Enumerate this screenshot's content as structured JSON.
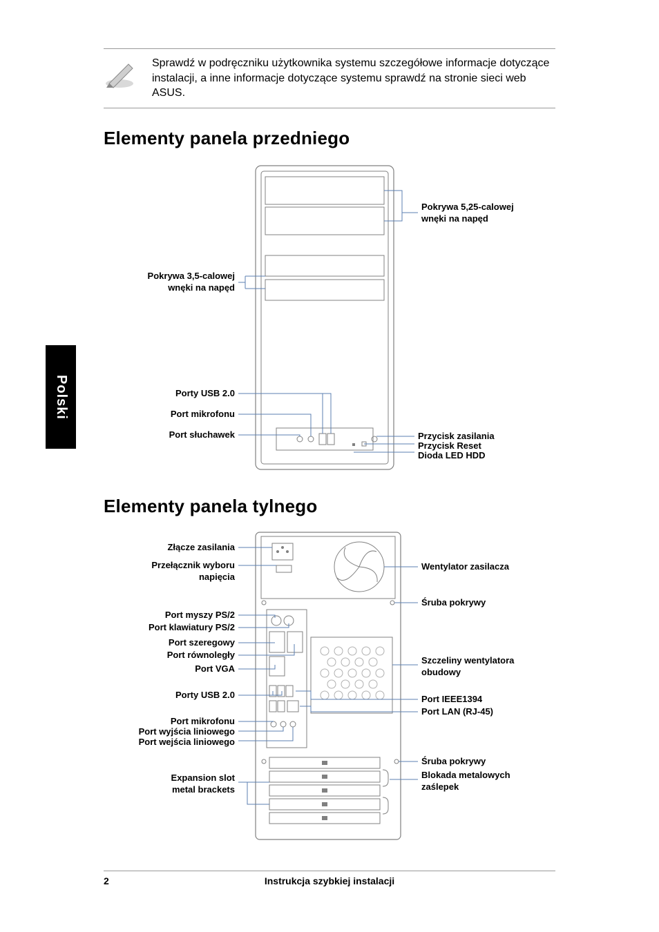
{
  "side_tab": "Polski",
  "note": {
    "text": "Sprawdź w podręczniku użytkownika systemu szczegółowe informacje dotyczące instalacji, a inne informacje dotyczące systemu sprawdź na stronie sieci web ASUS."
  },
  "front": {
    "title": "Elementy panela przedniego",
    "left": {
      "bay35": "Pokrywa 3,5-calowej\nwnęki na napęd",
      "usb20": "Porty USB 2.0",
      "mic": "Port mikrofonu",
      "head": "Port słuchawek"
    },
    "right": {
      "bay525": "Pokrywa 5,25-calowej\nwnęki na napęd",
      "power": "Przycisk zasilania",
      "reset": "Przycisk Reset",
      "hdd": "Dioda LED HDD"
    },
    "styling": {
      "line_color": "#5b7fb2",
      "chassis_stroke": "#808080",
      "chassis_fill": "#ffffff",
      "label_font_size": 13
    }
  },
  "rear": {
    "title": "Elementy panela tylnego",
    "left": {
      "power_conn": "Złącze zasilania",
      "voltage": "Przełącznik wyboru\nnapięcia",
      "ps2_mouse": "Port myszy PS/2",
      "ps2_kbd": "Port klawiatury PS/2",
      "serial": "Port szeregowy",
      "parallel": "Port równoległy",
      "vga": "Port VGA",
      "usb20": "Porty USB 2.0",
      "mic": "Port mikrofonu",
      "lineout": "Port wyjścia liniowego",
      "linein": "Port wejścia liniowego",
      "exp": "Expansion slot\nmetal brackets"
    },
    "right": {
      "psu_fan": "Wentylator zasilacza",
      "screw1": "Śruba pokrywy",
      "fan_slots": "Szczeliny wentylatora\nobudowy",
      "ieee1394": "Port IEEE1394",
      "lan": "Port LAN (RJ-45)",
      "screw2": "Śruba pokrywy",
      "metal_lock": "Blokada metalowych\nzaślepek"
    },
    "styling": {
      "line_color": "#5b7fb2",
      "chassis_stroke": "#808080",
      "label_font_size": 13
    }
  },
  "footer": {
    "page": "2",
    "title": "Instrukcja szybkiej instalacji"
  }
}
